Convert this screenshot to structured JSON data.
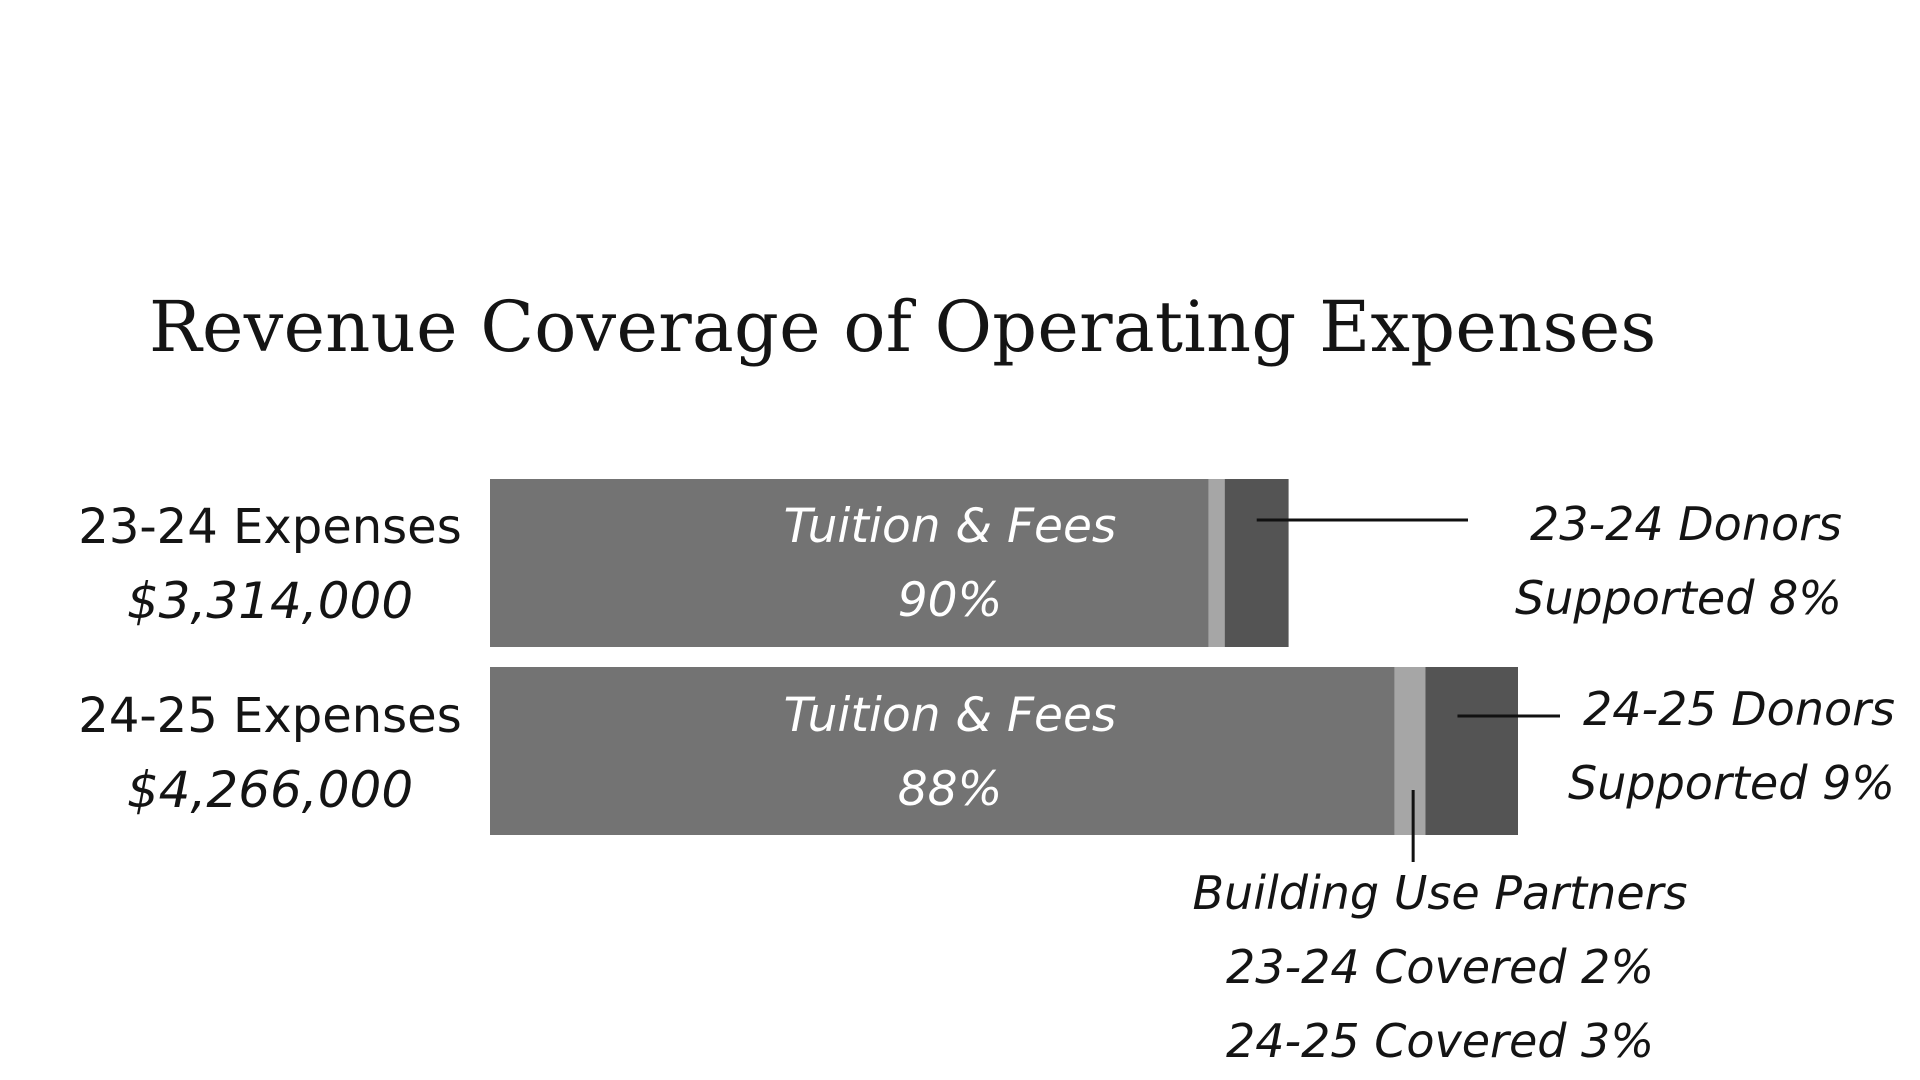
{
  "chart_data": {
    "type": "bar",
    "orientation": "horizontal",
    "stacked": true,
    "title": "Revenue Coverage of Operating Expenses",
    "xlabel": "",
    "ylabel": "",
    "grid": false,
    "legend": "none",
    "categories": [
      {
        "name": "23-24 Expenses",
        "amount_label": "$3,314,000",
        "amount": 3314000
      },
      {
        "name": "24-25 Expenses",
        "amount_label": "$4,266,000",
        "amount": 4266000
      }
    ],
    "series": [
      {
        "name": "Tuition & Fees",
        "values": [
          90,
          88
        ],
        "labels": [
          "90%",
          "88%"
        ],
        "color": "#737373"
      },
      {
        "name": "Building Use Partners",
        "values": [
          2,
          3
        ],
        "color": "#a6a6a6"
      },
      {
        "name": "Donors",
        "values": [
          8,
          9
        ],
        "color": "#545454"
      }
    ],
    "callouts": {
      "donors_2324": [
        "23-24 Donors",
        "Supported 8%"
      ],
      "donors_2425": [
        "24-25 Donors",
        "Supported 9%"
      ],
      "building": [
        "Building Use Partners",
        "23-24 Covered 2%",
        "24-25 Covered 3%"
      ]
    }
  }
}
